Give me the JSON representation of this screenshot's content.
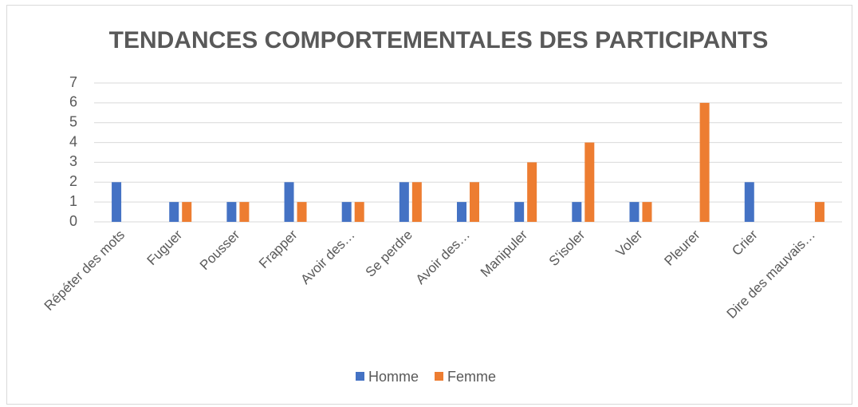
{
  "chart_data": {
    "type": "bar",
    "title": "TENDANCES COMPORTEMENTALES DES PARTICIPANTS",
    "categories": [
      "Répéter des mots",
      "Fuguer",
      "Pousser",
      "Frapper",
      "Avoir des…",
      "Se perdre",
      "Avoir des…",
      "Manipuler",
      "S'isoler",
      "Voler",
      "Pleurer",
      "Crier",
      "Dire des mauvais…"
    ],
    "series": [
      {
        "name": "Homme",
        "color": "#4472c4",
        "values": [
          2,
          1,
          1,
          2,
          1,
          2,
          1,
          1,
          1,
          1,
          0,
          2,
          0
        ]
      },
      {
        "name": "Femme",
        "color": "#ed7d31",
        "values": [
          0,
          1,
          1,
          1,
          1,
          2,
          2,
          3,
          4,
          1,
          6,
          0,
          1
        ]
      }
    ],
    "ylim": [
      0,
      7
    ],
    "yticks": [
      0,
      1,
      2,
      3,
      4,
      5,
      6,
      7
    ],
    "grid": true,
    "legend": "bottom"
  }
}
